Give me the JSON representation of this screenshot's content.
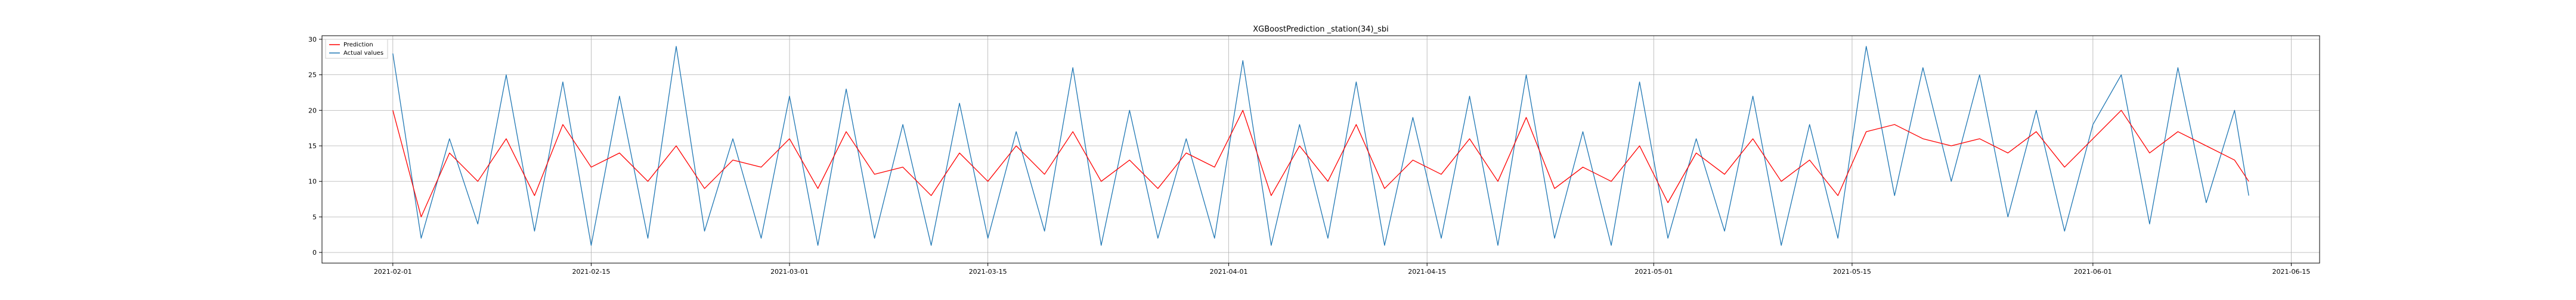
{
  "chart_data": {
    "type": "line",
    "title": "XGBoostPrediction _station(34)_sbi",
    "xlabel": "",
    "ylabel": "",
    "x_range": [
      "2021-01-27",
      "2021-06-17"
    ],
    "ylim": [
      -1.5,
      30.5
    ],
    "x_ticks": [
      "2021-02-01",
      "2021-02-15",
      "2021-03-01",
      "2021-03-15",
      "2021-04-01",
      "2021-04-15",
      "2021-05-01",
      "2021-05-15",
      "2021-06-01",
      "2021-06-15"
    ],
    "y_ticks": [
      0,
      5,
      10,
      15,
      20,
      25,
      30
    ],
    "grid": true,
    "legend_position": "top-left",
    "series": [
      {
        "name": "Prediction",
        "color": "#ff0000",
        "x": [
          "2021-02-01",
          "2021-02-03",
          "2021-02-05",
          "2021-02-07",
          "2021-02-09",
          "2021-02-11",
          "2021-02-13",
          "2021-02-15",
          "2021-02-17",
          "2021-02-19",
          "2021-02-21",
          "2021-02-23",
          "2021-02-25",
          "2021-02-27",
          "2021-03-01",
          "2021-03-03",
          "2021-03-05",
          "2021-03-07",
          "2021-03-09",
          "2021-03-11",
          "2021-03-13",
          "2021-03-15",
          "2021-03-17",
          "2021-03-19",
          "2021-03-21",
          "2021-03-23",
          "2021-03-25",
          "2021-03-27",
          "2021-03-29",
          "2021-03-31",
          "2021-04-02",
          "2021-04-04",
          "2021-04-06",
          "2021-04-08",
          "2021-04-10",
          "2021-04-12",
          "2021-04-14",
          "2021-04-16",
          "2021-04-18",
          "2021-04-20",
          "2021-04-22",
          "2021-04-24",
          "2021-04-26",
          "2021-04-28",
          "2021-04-30",
          "2021-05-02",
          "2021-05-04",
          "2021-05-06",
          "2021-05-08",
          "2021-05-10",
          "2021-05-12",
          "2021-05-14",
          "2021-05-16",
          "2021-05-18",
          "2021-05-20",
          "2021-05-22",
          "2021-05-24",
          "2021-05-26",
          "2021-05-28",
          "2021-05-30",
          "2021-06-01",
          "2021-06-03",
          "2021-06-05",
          "2021-06-07",
          "2021-06-09",
          "2021-06-11",
          "2021-06-12"
        ],
        "values": [
          20,
          5,
          14,
          10,
          16,
          8,
          18,
          12,
          14,
          10,
          15,
          9,
          13,
          12,
          16,
          9,
          17,
          11,
          12,
          8,
          14,
          10,
          15,
          11,
          17,
          10,
          13,
          9,
          14,
          12,
          20,
          8,
          15,
          10,
          18,
          9,
          13,
          11,
          16,
          10,
          19,
          9,
          12,
          10,
          15,
          7,
          14,
          11,
          16,
          10,
          13,
          8,
          17,
          18,
          16,
          15,
          16,
          14,
          17,
          12,
          16,
          20,
          14,
          17,
          15,
          13,
          10
        ]
      },
      {
        "name": "Actual values",
        "color": "#1f77b4",
        "x": [
          "2021-02-01",
          "2021-02-03",
          "2021-02-05",
          "2021-02-07",
          "2021-02-09",
          "2021-02-11",
          "2021-02-13",
          "2021-02-15",
          "2021-02-17",
          "2021-02-19",
          "2021-02-21",
          "2021-02-23",
          "2021-02-25",
          "2021-02-27",
          "2021-03-01",
          "2021-03-03",
          "2021-03-05",
          "2021-03-07",
          "2021-03-09",
          "2021-03-11",
          "2021-03-13",
          "2021-03-15",
          "2021-03-17",
          "2021-03-19",
          "2021-03-21",
          "2021-03-23",
          "2021-03-25",
          "2021-03-27",
          "2021-03-29",
          "2021-03-31",
          "2021-04-02",
          "2021-04-04",
          "2021-04-06",
          "2021-04-08",
          "2021-04-10",
          "2021-04-12",
          "2021-04-14",
          "2021-04-16",
          "2021-04-18",
          "2021-04-20",
          "2021-04-22",
          "2021-04-24",
          "2021-04-26",
          "2021-04-28",
          "2021-04-30",
          "2021-05-02",
          "2021-05-04",
          "2021-05-06",
          "2021-05-08",
          "2021-05-10",
          "2021-05-12",
          "2021-05-14",
          "2021-05-16",
          "2021-05-18",
          "2021-05-20",
          "2021-05-22",
          "2021-05-24",
          "2021-05-26",
          "2021-05-28",
          "2021-05-30",
          "2021-06-01",
          "2021-06-03",
          "2021-06-05",
          "2021-06-07",
          "2021-06-09",
          "2021-06-11",
          "2021-06-12"
        ],
        "values": [
          28,
          2,
          16,
          4,
          25,
          3,
          24,
          1,
          22,
          2,
          29,
          3,
          16,
          2,
          22,
          1,
          23,
          2,
          18,
          1,
          21,
          2,
          17,
          3,
          26,
          1,
          20,
          2,
          16,
          2,
          27,
          1,
          18,
          2,
          24,
          1,
          19,
          2,
          22,
          1,
          25,
          2,
          17,
          1,
          24,
          2,
          16,
          3,
          22,
          1,
          18,
          2,
          29,
          8,
          26,
          10,
          25,
          5,
          20,
          3,
          18,
          25,
          4,
          26,
          7,
          20,
          8
        ]
      }
    ]
  }
}
